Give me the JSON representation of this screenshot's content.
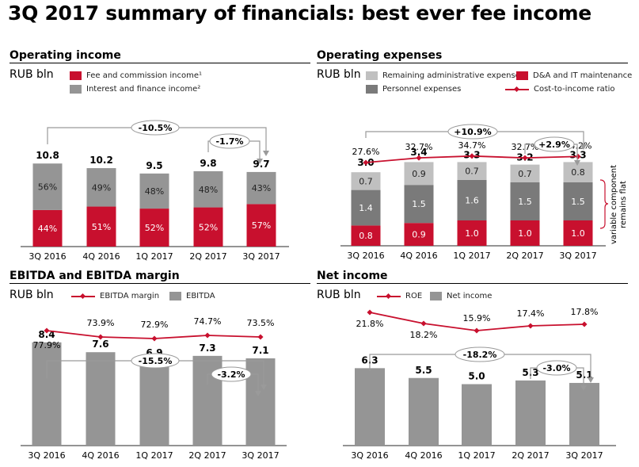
{
  "title": "3Q 2017 summary of financials: best ever fee income",
  "colors": {
    "red": "#c8102e",
    "grey": "#959595",
    "dark_grey": "#7a7a7a",
    "light_grey": "#c0c0c0",
    "arrow": "#9a9a9a"
  },
  "chart_data": [
    {
      "id": "operating_income",
      "type": "bar",
      "title": "Operating income",
      "unit": "RUB bln",
      "categories": [
        "3Q 2016",
        "4Q 2016",
        "1Q 2017",
        "2Q 2017",
        "3Q 2017"
      ],
      "totals": [
        10.8,
        10.2,
        9.5,
        9.8,
        9.7
      ],
      "total_labels": [
        "10.8",
        "10.2",
        "9.5",
        "9.8",
        "9.7"
      ],
      "series": [
        {
          "name": "Fee and commission income¹",
          "values_pct": [
            44,
            51,
            52,
            52,
            57
          ],
          "labels": [
            "44%",
            "51%",
            "52%",
            "52%",
            "57%"
          ]
        },
        {
          "name": "Interest and finance income²",
          "values_pct": [
            56,
            49,
            48,
            48,
            43
          ],
          "labels": [
            "56%",
            "49%",
            "48%",
            "48%",
            "43%"
          ]
        }
      ],
      "annotations": [
        {
          "from": "3Q 2016",
          "to": "3Q 2017",
          "label": "-10.5%"
        },
        {
          "from": "2Q 2017",
          "to": "3Q 2017",
          "label": "-1.7%"
        }
      ],
      "legend": [
        "Fee and commission income¹",
        "Interest and finance income²"
      ]
    },
    {
      "id": "operating_expenses",
      "type": "bar",
      "title": "Operating expenses",
      "unit": "RUB bln",
      "categories": [
        "3Q 2016",
        "4Q 2016",
        "1Q 2017",
        "2Q 2017",
        "3Q 2017"
      ],
      "totals": [
        3.0,
        3.4,
        3.3,
        3.2,
        3.3
      ],
      "total_labels": [
        "3.0",
        "3.4",
        "3.3",
        "3.2",
        "3.3"
      ],
      "series": [
        {
          "name": "D&A and IT maintenance",
          "values": [
            0.8,
            0.9,
            1.0,
            1.0,
            1.0
          ],
          "labels": [
            "0.8",
            "0.9",
            "1.0",
            "1.0",
            "1.0"
          ]
        },
        {
          "name": "Personnel expenses",
          "values": [
            1.4,
            1.5,
            1.6,
            1.5,
            1.5
          ],
          "labels": [
            "1.4",
            "1.5",
            "1.6",
            "1.5",
            "1.5"
          ]
        },
        {
          "name": "Remaining administrative expenses³",
          "values": [
            0.7,
            0.9,
            0.7,
            0.7,
            0.8
          ],
          "labels": [
            "0.7",
            "0.9",
            "0.7",
            "0.7",
            "0.8"
          ]
        }
      ],
      "line": {
        "name": "Cost-to-income ratio",
        "values": [
          27.6,
          32.7,
          34.7,
          32.7,
          34.2
        ],
        "labels": [
          "27.6%",
          "32.7%",
          "34.7%",
          "32.7%",
          "34.2%"
        ]
      },
      "annotations": [
        {
          "from": "3Q 2016",
          "to": "3Q 2017",
          "label": "+10.9%"
        },
        {
          "from": "2Q 2017",
          "to": "3Q 2017",
          "label": "+2.9%"
        }
      ],
      "side_note": [
        "variable component",
        "remains flat"
      ],
      "legend": [
        "Remaining administrative expenses³",
        "D&A and IT maintenance",
        "Personnel expenses",
        "Cost-to-income ratio"
      ]
    },
    {
      "id": "ebitda",
      "type": "bar",
      "title": "EBITDA and EBITDA margin",
      "unit": "RUB bln",
      "categories": [
        "3Q 2016",
        "4Q 2016",
        "1Q 2017",
        "2Q 2017",
        "3Q 2017"
      ],
      "series": [
        {
          "name": "EBITDA",
          "values": [
            8.4,
            7.6,
            6.9,
            7.3,
            7.1
          ],
          "labels": [
            "8.4",
            "7.6",
            "6.9",
            "7.3",
            "7.1"
          ]
        }
      ],
      "line": {
        "name": "EBITDA margin",
        "values": [
          77.9,
          73.9,
          72.9,
          74.7,
          73.5
        ],
        "labels": [
          "77.9%",
          "73.9%",
          "72.9%",
          "74.7%",
          "73.5%"
        ]
      },
      "annotations": [
        {
          "from": "3Q 2016",
          "to": "3Q 2017",
          "label": "-15.5%"
        },
        {
          "from": "2Q 2017",
          "to": "3Q 2017",
          "label": "-3.2%"
        }
      ],
      "legend": [
        "EBITDA margin",
        "EBITDA"
      ]
    },
    {
      "id": "net_income",
      "type": "bar",
      "title": "Net income",
      "unit": "RUB bln",
      "categories": [
        "3Q 2016",
        "4Q 2016",
        "1Q 2017",
        "2Q 2017",
        "3Q 2017"
      ],
      "series": [
        {
          "name": "Net income",
          "values": [
            6.3,
            5.5,
            5.0,
            5.3,
            5.1
          ],
          "labels": [
            "6.3",
            "5.5",
            "5.0",
            "5.3",
            "5.1"
          ]
        }
      ],
      "line": {
        "name": "ROE",
        "values": [
          21.8,
          18.2,
          15.9,
          17.4,
          17.8
        ],
        "labels": [
          "21.8%",
          "18.2%",
          "15.9%",
          "17.4%",
          "17.8%"
        ]
      },
      "annotations": [
        {
          "from": "3Q 2016",
          "to": "3Q 2017",
          "label": "-18.2%"
        },
        {
          "from": "2Q 2017",
          "to": "3Q 2017",
          "label": "-3.0%"
        }
      ],
      "legend": [
        "ROE",
        "Net income"
      ]
    }
  ]
}
